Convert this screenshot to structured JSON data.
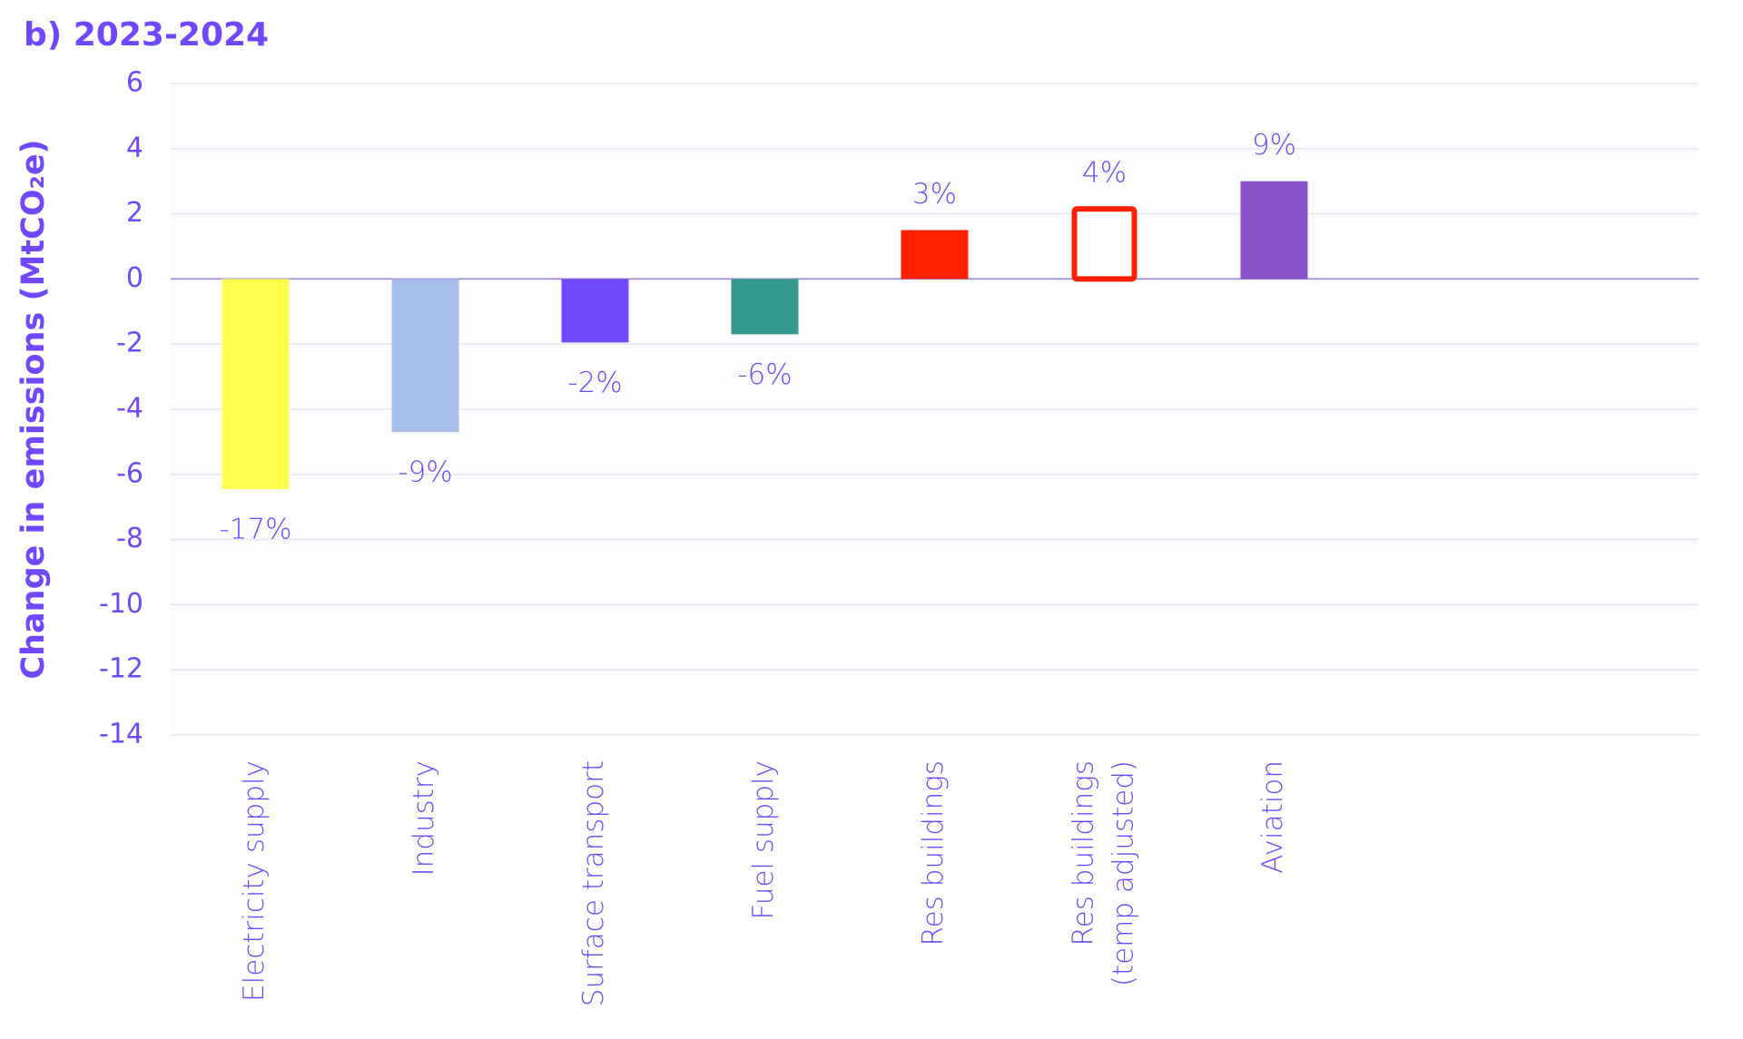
{
  "chart_data": {
    "type": "bar",
    "title": "b) 2023-2024",
    "y_label": "Change in emissions (MtCO₂e)",
    "categories": [
      "Electricity supply",
      "Industry",
      "Surface transport",
      "Fuel supply",
      "Res buildings",
      "Res buildings\n(temp adjusted)",
      "Aviation",
      null,
      null
    ],
    "values": [
      -6.45,
      -4.7,
      -1.95,
      -1.7,
      1.5,
      2.15,
      3.0,
      null,
      null
    ],
    "bar_labels": [
      "-17%",
      "-9%",
      "-2%",
      "-6%",
      "3%",
      "4%",
      "9%",
      null,
      null
    ],
    "colors": [
      "#ffff4d",
      "#a7bfe8",
      "#7048ff",
      "#34988f",
      "#ff2000",
      "#ff2000",
      "#8a55c8",
      null,
      null
    ],
    "styles": [
      "fill",
      "fill",
      "fill",
      "fill",
      "fill",
      "outline",
      "fill",
      null,
      null
    ],
    "ylim": [
      -14,
      6
    ],
    "yticks": [
      -14,
      -12,
      -10,
      -8,
      -6,
      -4,
      -2,
      0,
      2,
      4,
      6
    ],
    "grid": true
  }
}
